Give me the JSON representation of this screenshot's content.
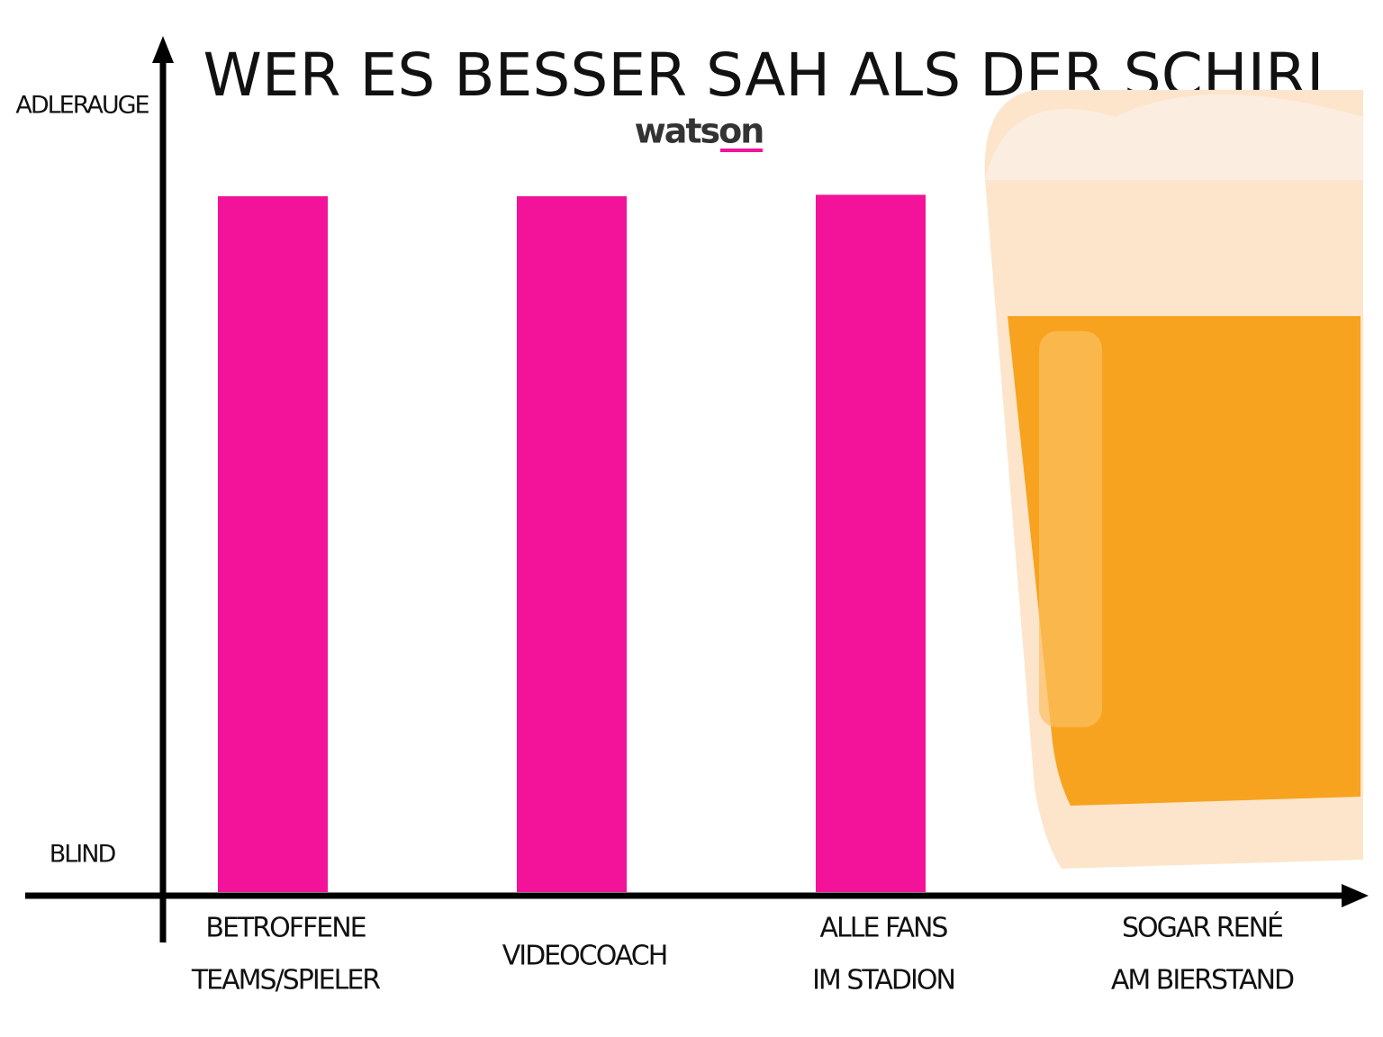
{
  "chart_data": {
    "type": "bar",
    "title": "WER ES BESSER SAH ALS DER SCHIRI",
    "source": "watson",
    "categories": [
      [
        "BETROFFENE",
        "TEAMS/SPIELER"
      ],
      [
        "VIDEOCOACH"
      ],
      [
        "ALLE FANS",
        "IM STADION"
      ],
      [
        "SOGAR RENÉ",
        "AM BIERSTAND"
      ]
    ],
    "values": [
      88,
      88,
      88.2,
      101
    ],
    "colors": [
      "#f2139a",
      "#f2139a",
      "#f2139a",
      "#f7a31f"
    ],
    "ylim": [
      -5.4,
      108.8
    ],
    "yticks": [
      {
        "value": 0,
        "label": "BLIND"
      },
      {
        "value": 100,
        "label": "ADLERAUGE"
      }
    ]
  }
}
